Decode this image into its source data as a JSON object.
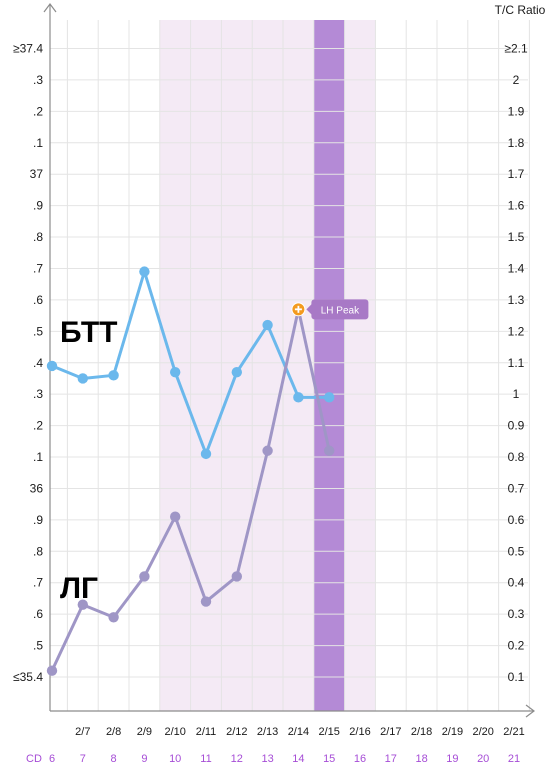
{
  "chart_data": {
    "type": "line",
    "right_axis_title": "T/C Ratio",
    "left_ticks": [
      "≥37.4",
      ".3",
      ".2",
      ".1",
      "37",
      ".9",
      ".8",
      ".7",
      ".6",
      ".5",
      ".4",
      ".3",
      ".2",
      ".1",
      "36",
      ".9",
      ".8",
      ".7",
      ".6",
      ".5",
      "≤35.4"
    ],
    "right_ticks": [
      "≥2.1",
      "2",
      "1.9",
      "1.8",
      "1.7",
      "1.6",
      "1.5",
      "1.4",
      "1.3",
      "1.2",
      "1.1",
      "1",
      "0.9",
      "0.8",
      "0.7",
      "0.6",
      "0.5",
      "0.4",
      "0.3",
      "0.2",
      "0.1"
    ],
    "x_dates": [
      "",
      "2/7",
      "2/8",
      "2/9",
      "2/10",
      "2/11",
      "2/12",
      "2/13",
      "2/14",
      "2/15",
      "2/16",
      "2/17",
      "2/18",
      "2/19",
      "2/20",
      "2/21"
    ],
    "cd_label": "CD",
    "cycle_days": [
      "6",
      "7",
      "8",
      "9",
      "10",
      "11",
      "12",
      "13",
      "14",
      "15",
      "16",
      "17",
      "18",
      "19",
      "20",
      "21"
    ],
    "ylim_left": [
      35.4,
      37.4
    ],
    "ylim_right": [
      0.1,
      2.1
    ],
    "fertile_window_cycle_days": [
      "10",
      "16"
    ],
    "ovulation_cycle_day": "15",
    "series": [
      {
        "name": "БТТ",
        "axis": "left",
        "color": "#6bb8ec",
        "values": [
          36.39,
          36.35,
          36.36,
          36.69,
          36.37,
          36.11,
          36.37,
          36.52,
          36.29,
          36.29
        ]
      },
      {
        "name": "ЛГ",
        "axis": "right",
        "color": "#9f96c6",
        "values": [
          0.12,
          0.33,
          0.29,
          0.42,
          0.61,
          0.34,
          0.42,
          0.82,
          1.27,
          0.82
        ]
      }
    ],
    "lh_peak": {
      "label": "LH Peak",
      "cycle_day": "14",
      "value": 1.27
    },
    "colors": {
      "bbt": "#6bb8ec",
      "lh": "#9f96c6",
      "fertile_band": "#f4eaf5",
      "ovulation_band": "#b48ad6",
      "lh_peak_marker": "#f39a1f",
      "lh_peak_badge": "#a879c6",
      "cd_text": "#a64dd6"
    }
  }
}
